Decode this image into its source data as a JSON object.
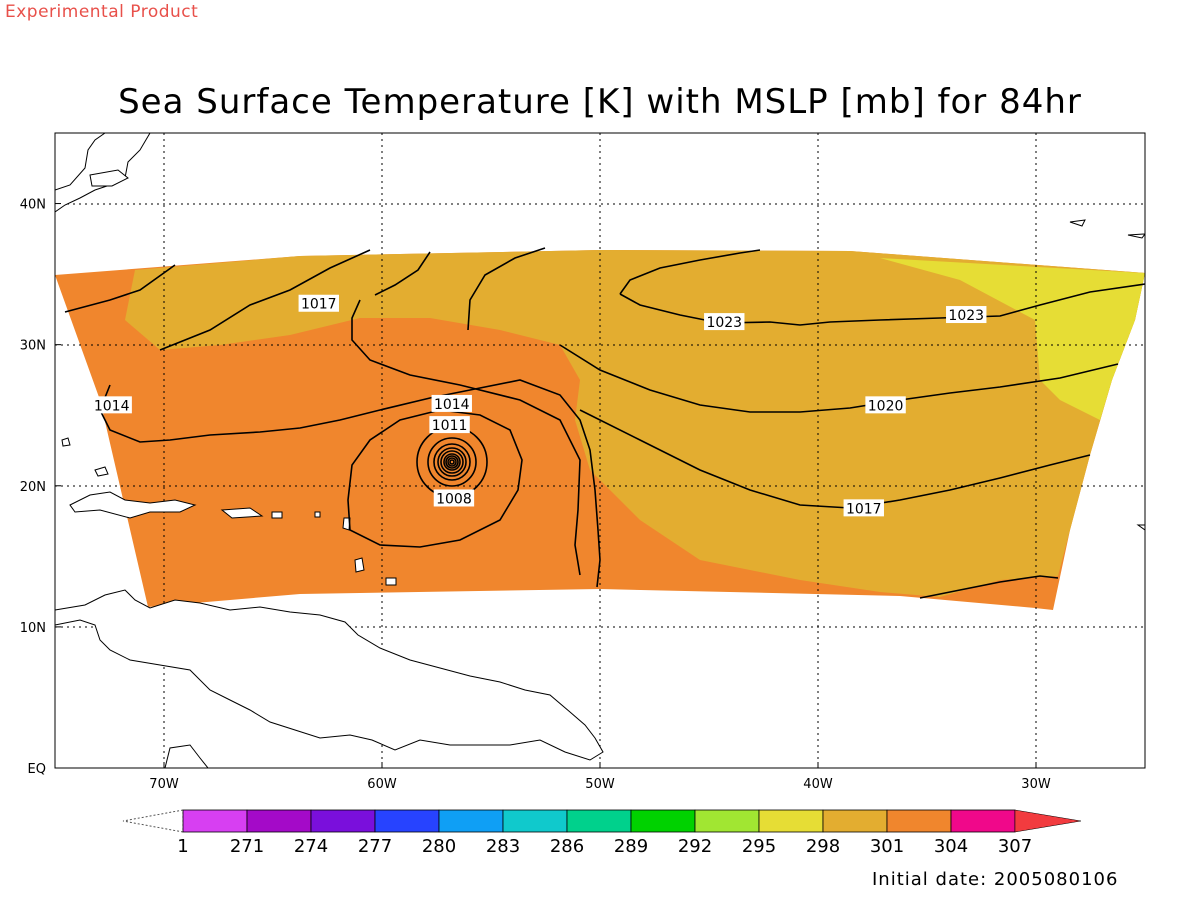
{
  "header": {
    "experimental_label": "Experimental Product",
    "title": "Sea Surface Temperature [K] with MSLP [mb] for 84hr"
  },
  "footer": {
    "initial_date": "Initial date: 2005080106"
  },
  "map": {
    "lon_range": [
      -75,
      -25
    ],
    "lat_range": [
      0,
      45
    ],
    "x_ticks": [
      {
        "lon": -70,
        "label": "70W"
      },
      {
        "lon": -60,
        "label": "60W"
      },
      {
        "lon": -50,
        "label": "50W"
      },
      {
        "lon": -40,
        "label": "40W"
      },
      {
        "lon": -30,
        "label": "30W"
      }
    ],
    "y_ticks": [
      {
        "lat": 0,
        "label": "EQ"
      },
      {
        "lat": 10,
        "label": "10N"
      },
      {
        "lat": 20,
        "label": "20N"
      },
      {
        "lat": 30,
        "label": "30N"
      },
      {
        "lat": 40,
        "label": "40N"
      }
    ],
    "grid": "dotted",
    "contour_labels": [
      {
        "value": "1014",
        "lon": -72.4,
        "lat": 25.7
      },
      {
        "value": "1017",
        "lon": -62.9,
        "lat": 32.9
      },
      {
        "value": "1014",
        "lon": -56.8,
        "lat": 25.8
      },
      {
        "value": "1011",
        "lon": -56.9,
        "lat": 24.3
      },
      {
        "value": "1008",
        "lon": -56.7,
        "lat": 19.1
      },
      {
        "value": "1023",
        "lon": -44.3,
        "lat": 31.6
      },
      {
        "value": "1023",
        "lon": -33.2,
        "lat": 32.1
      },
      {
        "value": "1020",
        "lon": -36.9,
        "lat": 25.7
      },
      {
        "value": "1017",
        "lon": -37.9,
        "lat": 18.4
      }
    ],
    "colors": {
      "sst_304": "#f0862d",
      "sst_301": "#e3ad30",
      "sst_298": "#e6dd35",
      "coast": "#000000",
      "contour": "#000000"
    }
  },
  "colorbar": {
    "labels": [
      "1",
      "271",
      "274",
      "277",
      "280",
      "283",
      "286",
      "289",
      "292",
      "295",
      "298",
      "301",
      "304",
      "307"
    ],
    "colors": [
      "#d73ff2",
      "#a40ac8",
      "#7a0fdc",
      "#2743ff",
      "#0f9ff5",
      "#10c9cc",
      "#00d18c",
      "#00d200",
      "#a1e632",
      "#e6dd35",
      "#e3ad30",
      "#f0862d",
      "#f0088a",
      "#f23b3f"
    ]
  }
}
